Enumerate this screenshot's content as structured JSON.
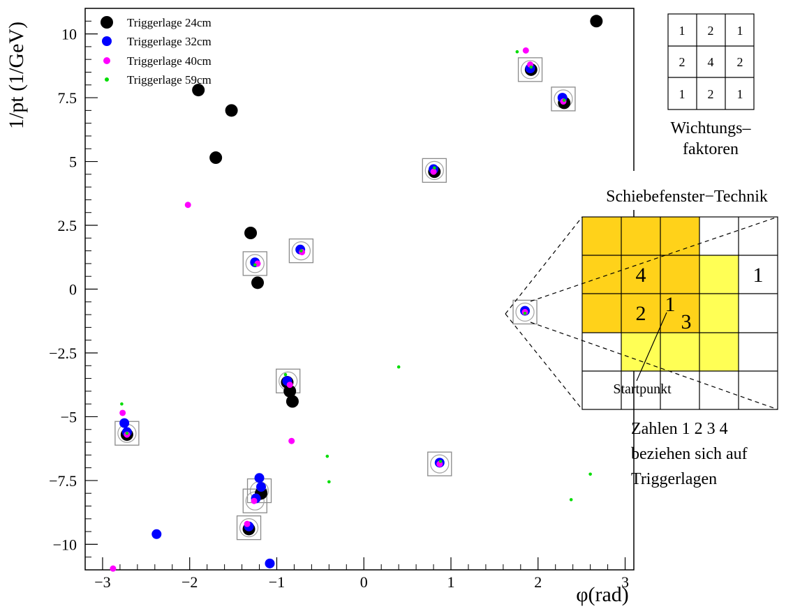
{
  "chart_data": [
    {
      "type": "scatter",
      "xlabel": "φ(rad)",
      "ylabel": "1/pt (1/GeV)",
      "xlim": [
        -3.2,
        3.1
      ],
      "ylim": [
        -11,
        11
      ],
      "x_ticks": [
        -3,
        -2,
        -1,
        0,
        1,
        2,
        3
      ],
      "y_ticks": [
        10,
        7.5,
        5,
        2.5,
        0,
        -2.5,
        -5,
        -7.5,
        -10
      ],
      "y_tick_labels": [
        "10",
        "7.5",
        "5",
        "2.5",
        "0",
        "−2.5",
        "−5",
        "−7.5",
        "−10"
      ],
      "x_tick_labels": [
        "−3",
        "−2",
        "−1",
        "0",
        "1",
        "2",
        "3"
      ],
      "grid": false,
      "legend_position": "top-left",
      "series": [
        {
          "name": "Triggerlage 24cm",
          "color": "#000000",
          "marker_size": "large",
          "points": [
            [
              -1.9,
              7.8
            ],
            [
              -1.52,
              7.0
            ],
            [
              -1.7,
              5.15
            ],
            [
              -1.3,
              2.2
            ],
            [
              -1.22,
              0.25
            ],
            [
              2.67,
              10.5
            ],
            [
              1.92,
              8.6
            ],
            [
              2.3,
              7.3
            ],
            [
              0.81,
              4.6
            ],
            [
              -0.85,
              -4.0
            ],
            [
              -0.82,
              -4.4
            ],
            [
              -1.18,
              -8.0
            ],
            [
              -1.32,
              -9.4
            ],
            [
              -0.88,
              -3.65
            ],
            [
              -2.72,
              -5.7
            ]
          ]
        },
        {
          "name": "Triggerlage 32cm",
          "color": "#0000ff",
          "marker_size": "medium",
          "points": [
            [
              -2.38,
              -9.6
            ],
            [
              -1.08,
              -10.75
            ],
            [
              -2.75,
              -5.25
            ],
            [
              -1.2,
              -7.4
            ],
            [
              -1.18,
              -7.75
            ],
            [
              -1.24,
              -8.2
            ],
            [
              -1.25,
              1.05
            ],
            [
              -0.73,
              1.55
            ],
            [
              0.8,
              4.7
            ],
            [
              1.91,
              8.65
            ],
            [
              2.28,
              7.5
            ],
            [
              1.85,
              -0.85
            ],
            [
              0.87,
              -6.8
            ],
            [
              -0.88,
              -3.6
            ],
            [
              -2.72,
              -5.6
            ],
            [
              -1.32,
              -9.3
            ]
          ]
        },
        {
          "name": "Triggerlage 40cm",
          "color": "#ff00ff",
          "marker_size": "small",
          "points": [
            [
              -2.02,
              3.3
            ],
            [
              1.86,
              9.35
            ],
            [
              1.91,
              8.8
            ],
            [
              -0.83,
              -5.95
            ],
            [
              -2.77,
              -4.85
            ],
            [
              -2.88,
              -10.95
            ],
            [
              -1.22,
              1.0
            ],
            [
              -0.71,
              1.45
            ],
            [
              0.8,
              4.6
            ],
            [
              1.85,
              -0.9
            ],
            [
              0.87,
              -6.85
            ],
            [
              -1.26,
              -8.3
            ],
            [
              -2.72,
              -5.7
            ],
            [
              2.29,
              7.35
            ],
            [
              -0.85,
              -3.75
            ],
            [
              -1.34,
              -9.2
            ]
          ]
        },
        {
          "name": "Triggerlage 59cm",
          "color": "#00dd00",
          "marker_size": "tiny",
          "points": [
            [
              1.76,
              9.3
            ],
            [
              -2.78,
              -4.5
            ],
            [
              0.4,
              -3.05
            ],
            [
              -0.42,
              -6.55
            ],
            [
              -0.4,
              -7.55
            ],
            [
              2.6,
              -7.25
            ],
            [
              2.38,
              -8.25
            ],
            [
              -0.9,
              -3.35
            ],
            [
              1.92,
              8.7
            ],
            [
              0.81,
              4.75
            ],
            [
              2.3,
              7.4
            ],
            [
              1.85,
              -0.95
            ],
            [
              0.88,
              -6.75
            ],
            [
              -1.25,
              0.95
            ],
            [
              -0.72,
              1.5
            ],
            [
              -2.72,
              -5.65
            ]
          ]
        }
      ],
      "highlighted_clusters": [
        [
          1.91,
          8.6
        ],
        [
          2.29,
          7.45
        ],
        [
          0.81,
          4.65
        ],
        [
          -1.25,
          1.0
        ],
        [
          -0.72,
          1.5
        ],
        [
          1.85,
          -0.9
        ],
        [
          -0.87,
          -3.6
        ],
        [
          -2.72,
          -5.65
        ],
        [
          0.87,
          -6.85
        ],
        [
          -1.2,
          -7.9
        ],
        [
          -1.25,
          -8.3
        ],
        [
          -1.32,
          -9.35
        ]
      ]
    }
  ],
  "weights": {
    "grid": [
      [
        "1",
        "2",
        "1"
      ],
      [
        "2",
        "4",
        "2"
      ],
      [
        "1",
        "2",
        "1"
      ]
    ],
    "caption_line1": "Wichtungs–",
    "caption_line2": "faktoren"
  },
  "window_technique": {
    "title": "Schiebefenster−Technik",
    "cell_labels": [
      {
        "text": "4",
        "col": 1,
        "row": 1
      },
      {
        "text": "1",
        "col": 4,
        "row": 1
      },
      {
        "text": "2",
        "col": 1,
        "row": 2
      },
      {
        "text": "1",
        "col": 2.15,
        "row": 2
      },
      {
        "text": "3",
        "col": 2.5,
        "row": 2.35
      }
    ],
    "start_label": "Startpunkt",
    "note": [
      "Zahlen 1 2 3 4",
      "beziehen sich auf",
      "Triggerlagen"
    ],
    "colors": {
      "orange": "#ffd21a",
      "yellow": "#ffff55"
    }
  }
}
